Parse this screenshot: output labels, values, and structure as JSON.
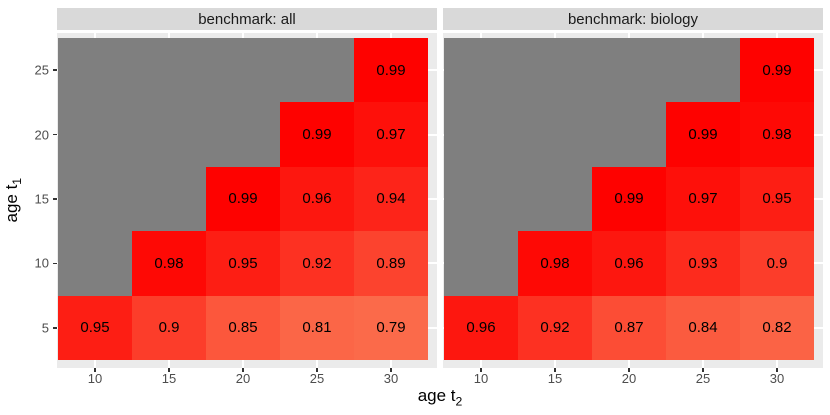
{
  "figure": {
    "x_axis_title": {
      "base": "age t",
      "sub": "2"
    },
    "y_axis_title": {
      "base": "age t",
      "sub": "1"
    },
    "x_ticks": [
      "10",
      "15",
      "20",
      "25",
      "30"
    ],
    "y_ticks": [
      "5",
      "10",
      "15",
      "20",
      "25"
    ]
  },
  "colors": {
    "background": "#FFFFFF",
    "strip_bg": "#D9D9D9",
    "strip_text": "#1A1A1A",
    "panel_bg": "#EBEBEB",
    "gridline": "#FFFFFF",
    "na_cell": "#7F7F7F",
    "tick_label": "#4D4D4D",
    "tick_mark": "#333333",
    "cell_text": "#000000",
    "fill_low": "#FB6A4A",
    "fill_high": "#FE0200"
  },
  "chart_data": {
    "type": "heatmap",
    "xlabel": "age t2",
    "ylabel": "age t1",
    "x": [
      10,
      15,
      20,
      25,
      30
    ],
    "y": [
      5,
      10,
      15,
      20,
      25
    ],
    "y_order": "bottom-to-top",
    "grid": true,
    "fill_scale": {
      "low_value": 0.79,
      "high_value": 0.99,
      "low_color": "#FB6A4A",
      "high_color": "#FE0200",
      "na_color": "#7F7F7F",
      "gamma": 1.4
    },
    "facets": [
      {
        "title": "benchmark: all",
        "values_by_row": [
          [
            0.95,
            0.9,
            0.85,
            0.81,
            0.79
          ],
          [
            null,
            0.98,
            0.95,
            0.92,
            0.89
          ],
          [
            null,
            null,
            0.99,
            0.96,
            0.94
          ],
          [
            null,
            null,
            null,
            0.99,
            0.97
          ],
          [
            null,
            null,
            null,
            null,
            0.99
          ]
        ]
      },
      {
        "title": "benchmark: biology",
        "values_by_row": [
          [
            0.96,
            0.92,
            0.87,
            0.84,
            0.82
          ],
          [
            null,
            0.98,
            0.96,
            0.93,
            0.9
          ],
          [
            null,
            null,
            0.99,
            0.97,
            0.95
          ],
          [
            null,
            null,
            null,
            0.99,
            0.98
          ],
          [
            null,
            null,
            null,
            null,
            0.99
          ]
        ]
      }
    ]
  }
}
